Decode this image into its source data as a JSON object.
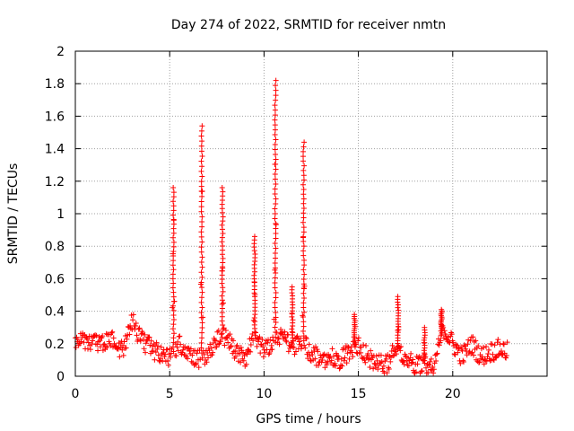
{
  "chart_data": {
    "type": "scatter",
    "title": "Day 274 of 2022, SRMTID for receiver nmtn",
    "xlabel": "GPS time / hours",
    "ylabel": "SRMTID / TECUs",
    "xlim": [
      0,
      25
    ],
    "ylim": [
      0,
      2
    ],
    "xticks": [
      "0",
      "5",
      "10",
      "15",
      "20"
    ],
    "yticks": [
      "0",
      "0.2",
      "0.4",
      "0.6",
      "0.8",
      "1",
      "1.2",
      "1.4",
      "1.6",
      "1.8",
      "2"
    ],
    "grid": true,
    "marker": "+",
    "series_color": "#ff0000",
    "baseline": [
      [
        0.0,
        0.2
      ],
      [
        0.5,
        0.22
      ],
      [
        1.0,
        0.2
      ],
      [
        1.5,
        0.21
      ],
      [
        2.0,
        0.22
      ],
      [
        2.5,
        0.15
      ],
      [
        3.0,
        0.34
      ],
      [
        3.5,
        0.22
      ],
      [
        4.0,
        0.18
      ],
      [
        4.5,
        0.13
      ],
      [
        5.0,
        0.12
      ],
      [
        5.5,
        0.2
      ],
      [
        6.0,
        0.16
      ],
      [
        6.5,
        0.1
      ],
      [
        7.0,
        0.13
      ],
      [
        7.5,
        0.22
      ],
      [
        8.0,
        0.25
      ],
      [
        8.5,
        0.14
      ],
      [
        9.0,
        0.1
      ],
      [
        9.5,
        0.25
      ],
      [
        10.0,
        0.15
      ],
      [
        10.5,
        0.2
      ],
      [
        11.0,
        0.25
      ],
      [
        11.5,
        0.18
      ],
      [
        12.0,
        0.2
      ],
      [
        12.5,
        0.15
      ],
      [
        13.0,
        0.1
      ],
      [
        13.5,
        0.12
      ],
      [
        14.0,
        0.1
      ],
      [
        14.5,
        0.15
      ],
      [
        15.0,
        0.2
      ],
      [
        15.5,
        0.12
      ],
      [
        16.0,
        0.08
      ],
      [
        16.5,
        0.07
      ],
      [
        17.0,
        0.18
      ],
      [
        17.5,
        0.12
      ],
      [
        18.0,
        0.06
      ],
      [
        18.5,
        0.08
      ],
      [
        19.0,
        0.05
      ],
      [
        19.5,
        0.3
      ],
      [
        20.0,
        0.2
      ],
      [
        20.5,
        0.12
      ],
      [
        21.0,
        0.2
      ],
      [
        21.5,
        0.12
      ],
      [
        22.0,
        0.15
      ],
      [
        22.5,
        0.17
      ],
      [
        22.9,
        0.15
      ]
    ],
    "spikes": [
      {
        "t": 5.2,
        "peak": 1.16
      },
      {
        "t": 6.7,
        "peak": 1.54
      },
      {
        "t": 7.8,
        "peak": 1.16
      },
      {
        "t": 9.5,
        "peak": 0.86
      },
      {
        "t": 10.6,
        "peak": 1.82
      },
      {
        "t": 11.5,
        "peak": 0.55
      },
      {
        "t": 12.1,
        "peak": 1.44
      },
      {
        "t": 14.8,
        "peak": 0.38
      },
      {
        "t": 17.1,
        "peak": 0.49
      },
      {
        "t": 18.5,
        "peak": 0.3
      },
      {
        "t": 19.4,
        "peak": 0.41
      }
    ]
  }
}
